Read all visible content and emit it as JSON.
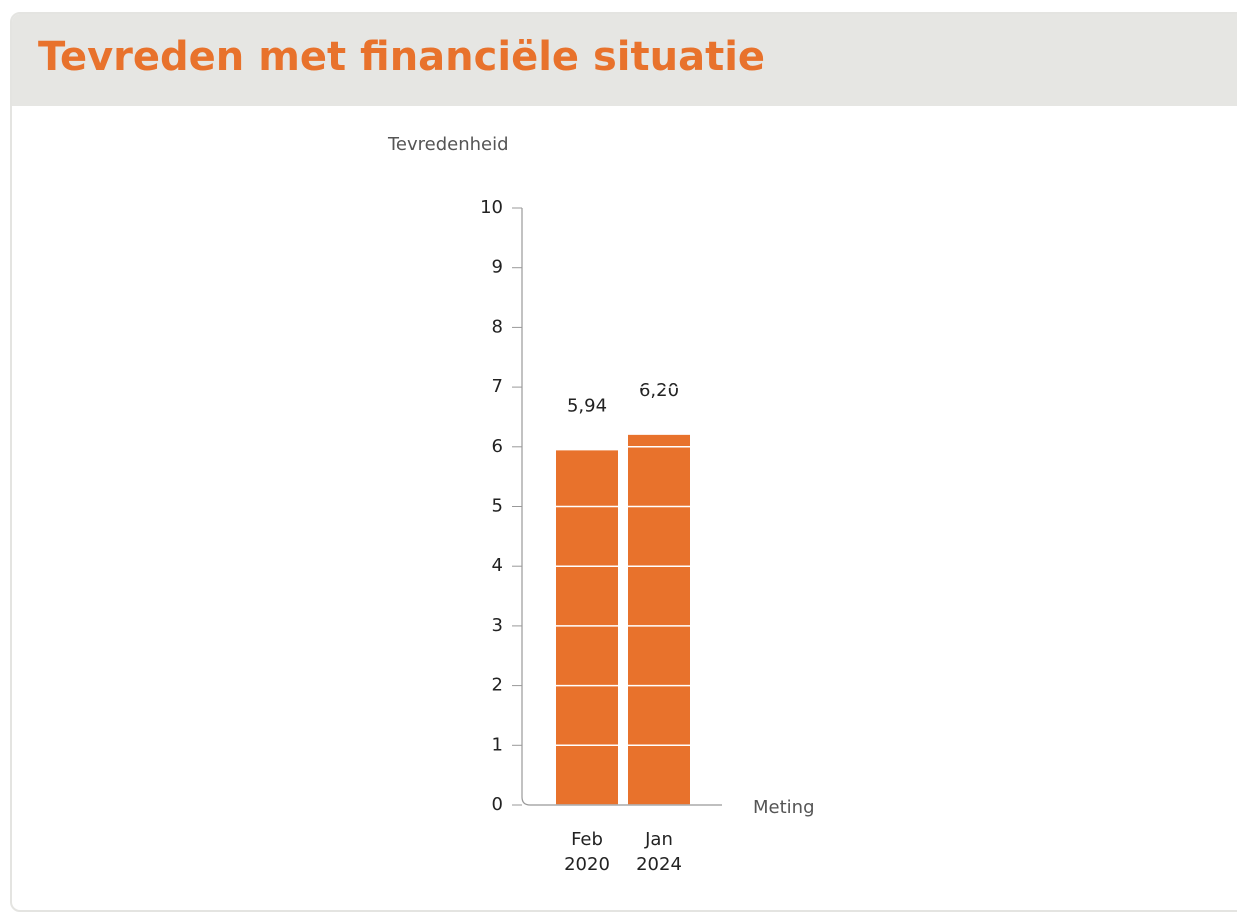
{
  "chart_data": {
    "type": "bar",
    "title": "Tevreden met financiële situatie",
    "y_label": "Tevredenheid",
    "x_label": "Meting",
    "categories": [
      "Feb 2020",
      "Jan 2024"
    ],
    "values": [
      5.94,
      6.2
    ],
    "value_labels": [
      "5,94",
      "6,20"
    ],
    "color": "#e8722c",
    "ylim": [
      0,
      10
    ],
    "yticks": [
      0,
      1,
      2,
      3,
      4,
      5,
      6,
      7,
      8,
      9,
      10
    ],
    "grid": true
  }
}
